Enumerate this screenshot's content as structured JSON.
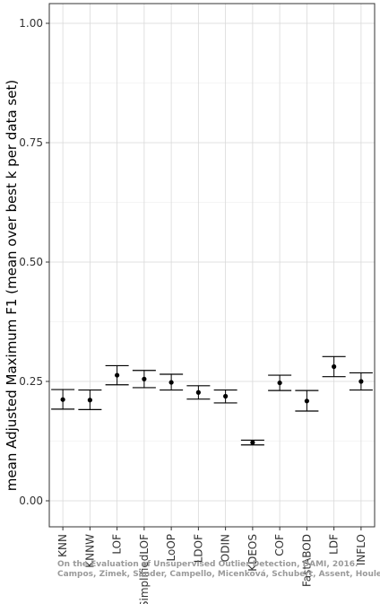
{
  "chart_data": {
    "type": "errorbar",
    "categories": [
      "KNN",
      "KNNW",
      "LOF",
      "SimplifiedLOF",
      "LoOP",
      "LDOF",
      "ODIN",
      "KDEOS",
      "COF",
      "FastABOD",
      "LDF",
      "INFLO"
    ],
    "values": [
      0.212,
      0.211,
      0.263,
      0.255,
      0.248,
      0.227,
      0.219,
      0.122,
      0.247,
      0.209,
      0.281,
      0.25
    ],
    "lower": [
      0.192,
      0.191,
      0.243,
      0.237,
      0.232,
      0.213,
      0.205,
      0.117,
      0.231,
      0.188,
      0.26,
      0.232
    ],
    "upper": [
      0.233,
      0.232,
      0.283,
      0.273,
      0.265,
      0.241,
      0.232,
      0.127,
      0.263,
      0.231,
      0.302,
      0.268
    ],
    "ylabel": "mean Adjusted Maximum F1 (mean over best k per data set)",
    "xlabel": "",
    "ylim": [
      0,
      1.05
    ],
    "yticks": [
      0.0,
      0.25,
      0.5,
      0.75,
      1.0
    ],
    "ytick_labels": [
      "0.00",
      "0.25",
      "0.50",
      "0.75",
      "1.00"
    ],
    "grid": true
  },
  "watermark": {
    "line1": "On the Evaluation of Unsupervised Outlier Detection, DAMI, 2016.",
    "line2": "Campos, Zimek, Sander, Campello, Micenková, Schubert, Assent, Houle"
  }
}
